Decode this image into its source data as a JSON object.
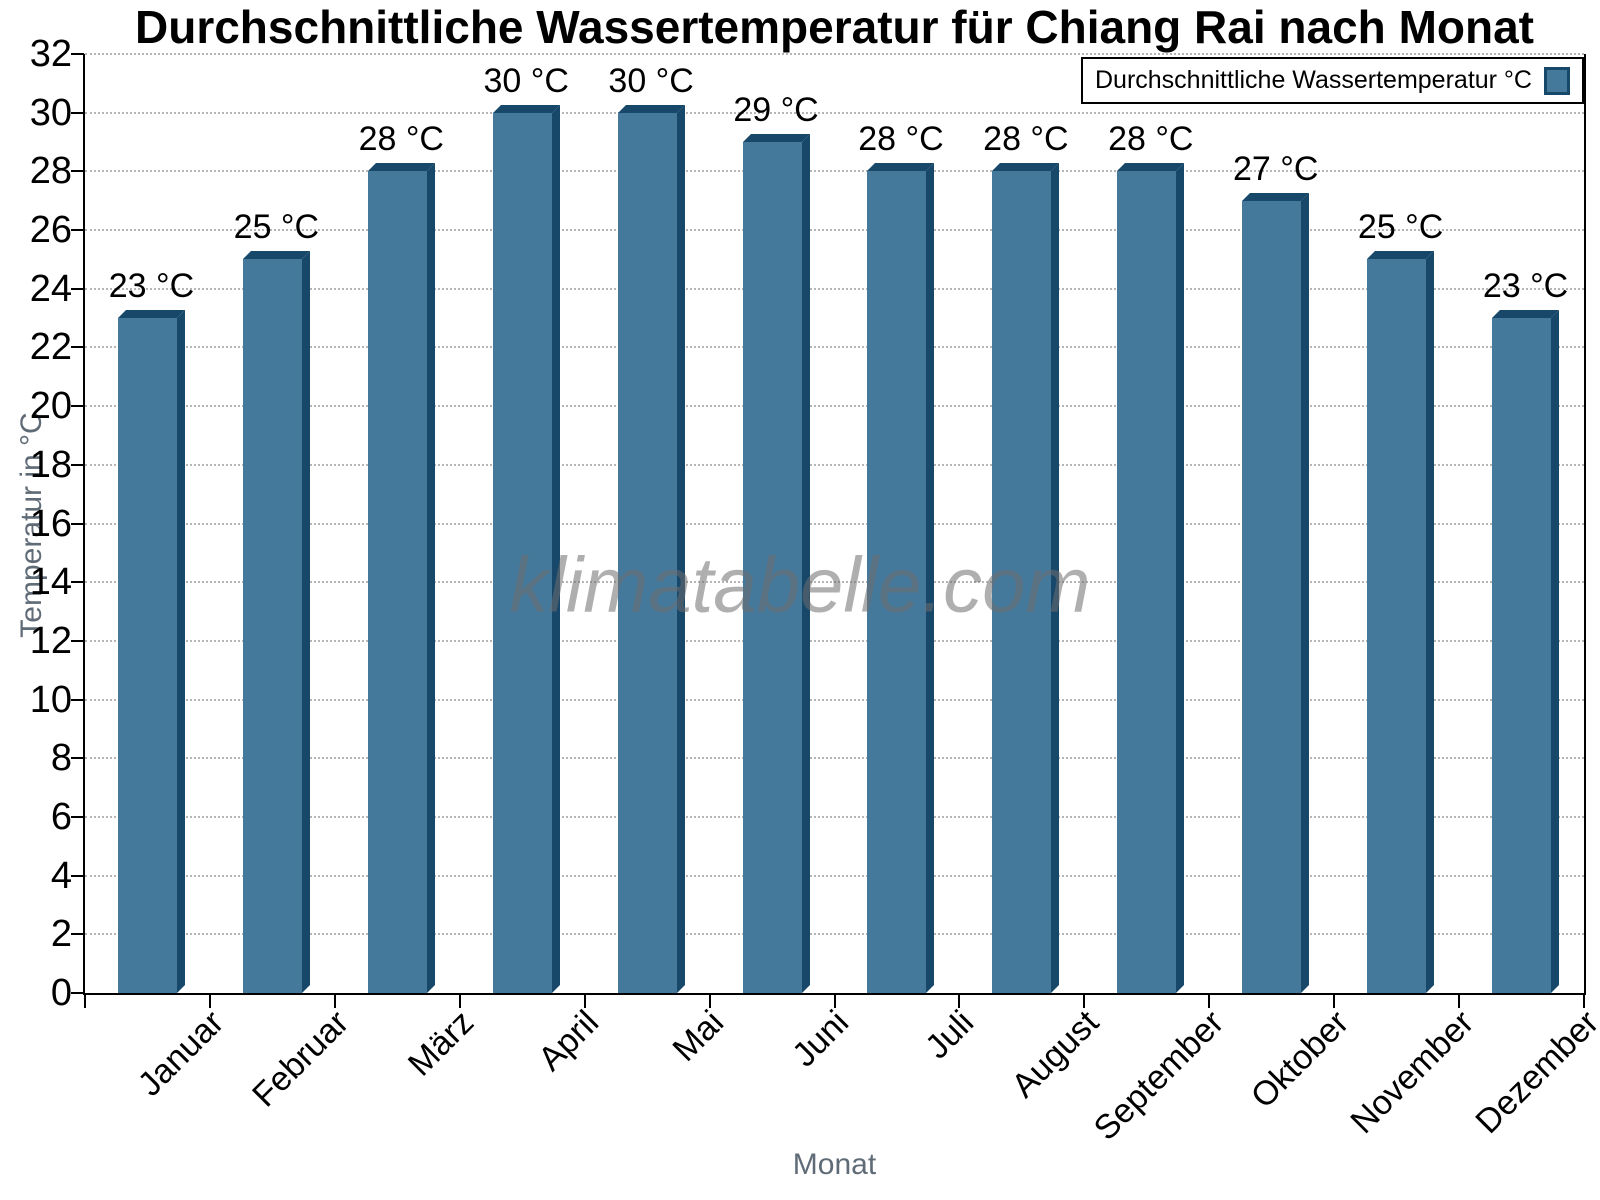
{
  "title": "Durchschnittliche Wassertemperatur für Chiang Rai nach Monat",
  "watermark": "klimatabelle.com",
  "legend": {
    "label": "Durchschnittliche Wassertemperatur °C"
  },
  "axes": {
    "xlabel": "Monat",
    "ylabel": "Temperatur in °C"
  },
  "chart_data": {
    "type": "bar",
    "title": "Durchschnittliche Wassertemperatur für Chiang Rai nach Monat",
    "categories": [
      "Januar",
      "Februar",
      "März",
      "April",
      "Mai",
      "Juni",
      "Juli",
      "August",
      "September",
      "Oktober",
      "November",
      "Dezember"
    ],
    "values": [
      23,
      25,
      28,
      30,
      30,
      29,
      28,
      28,
      28,
      27,
      25,
      23
    ],
    "value_suffix": " °C",
    "xlabel": "Monat",
    "ylabel": "Temperatur in °C",
    "ylim": [
      0,
      32
    ],
    "ytick_step": 2,
    "grid": "horizontal-dotted",
    "legend_label": "Durchschnittliche Wassertemperatur °C",
    "legend_position": "top-right",
    "colors": {
      "bar_face": "#45799C",
      "bar_shadow": "#17486A",
      "gridline": "#b5b5b5",
      "axis_title": "#5f6b76",
      "watermark_gray": "#6e6e6e"
    }
  }
}
